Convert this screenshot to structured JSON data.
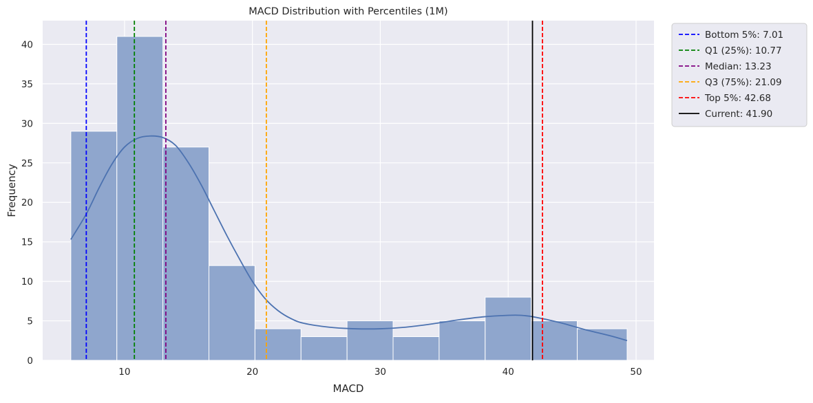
{
  "chart_data": {
    "type": "histogram",
    "title": "MACD Distribution with Percentiles (1M)",
    "xlabel": "MACD",
    "ylabel": "Frequency",
    "xlim": [
      3.6,
      51.4
    ],
    "ylim": [
      0,
      43
    ],
    "xticks": [
      10,
      20,
      30,
      40,
      50
    ],
    "yticks": [
      0,
      5,
      10,
      15,
      20,
      25,
      30,
      35,
      40
    ],
    "grid": true,
    "legend_placement": "outside-top-right",
    "bar_color": "#8fa6cd",
    "kde_color": "#4c72b0",
    "bins": [
      {
        "x0": 5.8,
        "x1": 9.4,
        "count": 29
      },
      {
        "x0": 9.4,
        "x1": 13.0,
        "count": 41
      },
      {
        "x0": 13.0,
        "x1": 16.6,
        "count": 27
      },
      {
        "x0": 16.6,
        "x1": 20.2,
        "count": 12
      },
      {
        "x0": 20.2,
        "x1": 23.8,
        "count": 4
      },
      {
        "x0": 23.8,
        "x1": 27.4,
        "count": 3
      },
      {
        "x0": 27.4,
        "x1": 31.0,
        "count": 5
      },
      {
        "x0": 31.0,
        "x1": 34.6,
        "count": 3
      },
      {
        "x0": 34.6,
        "x1": 38.2,
        "count": 5
      },
      {
        "x0": 38.2,
        "x1": 41.8,
        "count": 8
      },
      {
        "x0": 41.8,
        "x1": 45.4,
        "count": 5
      },
      {
        "x0": 45.4,
        "x1": 49.3,
        "count": 4
      }
    ],
    "kde_curve": [
      [
        5.8,
        15.3
      ],
      [
        7.0,
        18.5
      ],
      [
        8.0,
        21.8
      ],
      [
        9.0,
        24.8
      ],
      [
        10.0,
        27.0
      ],
      [
        11.0,
        28.1
      ],
      [
        12.0,
        28.4
      ],
      [
        13.0,
        28.2
      ],
      [
        14.0,
        27.2
      ],
      [
        15.0,
        25.0
      ],
      [
        16.0,
        22.2
      ],
      [
        17.0,
        19.0
      ],
      [
        18.0,
        15.8
      ],
      [
        19.0,
        12.8
      ],
      [
        20.0,
        10.0
      ],
      [
        21.0,
        7.8
      ],
      [
        22.0,
        6.3
      ],
      [
        23.0,
        5.3
      ],
      [
        24.0,
        4.7
      ],
      [
        26.0,
        4.2
      ],
      [
        28.0,
        4.0
      ],
      [
        30.0,
        4.0
      ],
      [
        32.0,
        4.2
      ],
      [
        34.0,
        4.6
      ],
      [
        36.0,
        5.1
      ],
      [
        38.0,
        5.5
      ],
      [
        40.0,
        5.7
      ],
      [
        41.0,
        5.7
      ],
      [
        42.0,
        5.5
      ],
      [
        44.0,
        4.8
      ],
      [
        46.0,
        3.9
      ],
      [
        48.0,
        3.1
      ],
      [
        49.3,
        2.5
      ]
    ],
    "reference_lines": [
      {
        "label": "Bottom 5%: 7.01",
        "value": 7.01,
        "color": "#0000ff",
        "style": "dashed"
      },
      {
        "label": "Q1 (25%): 10.77",
        "value": 10.77,
        "color": "#008000",
        "style": "dashed"
      },
      {
        "label": "Median: 13.23",
        "value": 13.23,
        "color": "#800080",
        "style": "dashed"
      },
      {
        "label": "Q3 (75%): 21.09",
        "value": 21.09,
        "color": "#ffa500",
        "style": "dashed"
      },
      {
        "label": "Top 5%: 42.68",
        "value": 42.68,
        "color": "#ff0000",
        "style": "dashed"
      },
      {
        "label": "Current: 41.90",
        "value": 41.9,
        "color": "#000000",
        "style": "solid"
      }
    ]
  }
}
